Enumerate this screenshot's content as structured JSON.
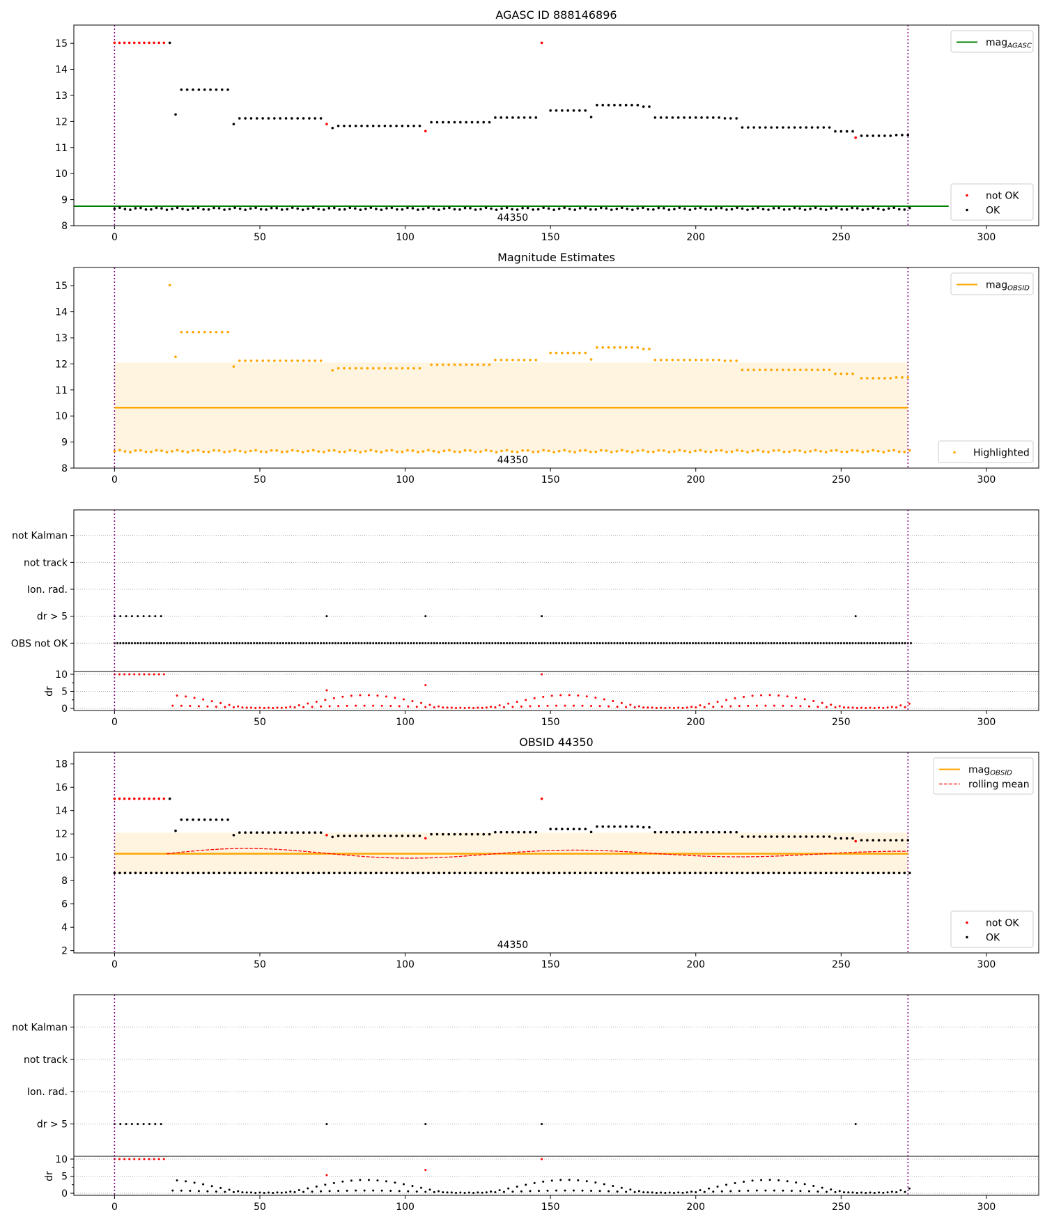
{
  "chart_data": [
    {
      "type": "scatter",
      "title": "AGASC ID 888146896",
      "xlim": [
        -14,
        318
      ],
      "ylim": [
        8,
        15.7
      ],
      "x_ticks": [
        0,
        50,
        100,
        150,
        200,
        250,
        300
      ],
      "y_ticks": [
        8,
        9,
        10,
        11,
        12,
        13,
        14,
        15
      ],
      "obsid_label": "44350",
      "obsid_x": 137,
      "obsid_boundaries": [
        0,
        273
      ],
      "mag_agasc": 8.75,
      "mag_agasc_xrange": [
        -14,
        287
      ],
      "legend_upper": {
        "placement": "upper-right",
        "entries": [
          {
            "kind": "line",
            "label_main": "mag",
            "label_sub": "AGASC",
            "color": "#008000"
          }
        ]
      },
      "legend_lower": {
        "placement": "lower-right",
        "entries": [
          {
            "kind": "dot",
            "label": "not OK",
            "color": "#ff0000"
          },
          {
            "kind": "dot",
            "label": "OK",
            "color": "#000000"
          }
        ]
      },
      "series": [
        {
          "name": "OK",
          "color": "#000000",
          "segments": [
            {
              "x": [
                0,
                274
              ],
              "y": 8.65,
              "step": 1.8,
              "jitter": 0.04
            },
            {
              "x": [
                19,
                19
              ],
              "y": 15.02,
              "step": 1
            },
            {
              "x": [
                21,
                21
              ],
              "y": 12.27,
              "step": 1
            },
            {
              "x": [
                23,
                39
              ],
              "y": 13.22,
              "step": 2
            },
            {
              "x": [
                41,
                41
              ],
              "y": 11.9,
              "step": 1
            },
            {
              "x": [
                43,
                71
              ],
              "y": 12.12,
              "step": 2
            },
            {
              "x": [
                75,
                75
              ],
              "y": 11.75,
              "step": 1
            },
            {
              "x": [
                77,
                105
              ],
              "y": 11.83,
              "step": 2
            },
            {
              "x": [
                109,
                129
              ],
              "y": 11.97,
              "step": 2
            },
            {
              "x": [
                131,
                145
              ],
              "y": 12.15,
              "step": 2
            },
            {
              "x": [
                150,
                162
              ],
              "y": 12.42,
              "step": 2
            },
            {
              "x": [
                164,
                164
              ],
              "y": 12.17,
              "step": 1
            },
            {
              "x": [
                166,
                180
              ],
              "y": 12.63,
              "step": 2
            },
            {
              "x": [
                182,
                184
              ],
              "y": 12.57,
              "step": 2
            },
            {
              "x": [
                186,
                208
              ],
              "y": 12.15,
              "step": 2
            },
            {
              "x": [
                210,
                214
              ],
              "y": 12.12,
              "step": 2
            },
            {
              "x": [
                216,
                246
              ],
              "y": 11.77,
              "step": 2
            },
            {
              "x": [
                248,
                254
              ],
              "y": 11.62,
              "step": 2
            },
            {
              "x": [
                257,
                267
              ],
              "y": 11.45,
              "step": 2
            },
            {
              "x": [
                269,
                273
              ],
              "y": 11.48,
              "step": 2
            }
          ]
        },
        {
          "name": "not OK",
          "color": "#ff0000",
          "segments": [
            {
              "x": [
                0,
                17
              ],
              "y": 15.02,
              "step": 1.7
            },
            {
              "x": [
                73,
                73
              ],
              "y": 11.9,
              "step": 1
            },
            {
              "x": [
                107,
                107
              ],
              "y": 11.63,
              "step": 1
            },
            {
              "x": [
                147,
                147
              ],
              "y": 15.02,
              "step": 1
            },
            {
              "x": [
                255,
                255
              ],
              "y": 11.38,
              "step": 1
            }
          ]
        }
      ]
    },
    {
      "type": "scatter",
      "title": "Magnitude Estimates",
      "xlim": [
        -14,
        318
      ],
      "ylim": [
        8,
        15.7
      ],
      "x_ticks": [
        0,
        50,
        100,
        150,
        200,
        250,
        300
      ],
      "y_ticks": [
        8,
        9,
        10,
        11,
        12,
        13,
        14,
        15
      ],
      "obsid_label": "44350",
      "obsid_x": 137,
      "obsid_boundaries": [
        0,
        273
      ],
      "mag_obsid": 10.32,
      "band": [
        8.62,
        12.05
      ],
      "legend_upper": {
        "placement": "upper-right",
        "entries": [
          {
            "kind": "line",
            "label_main": "mag",
            "label_sub": "OBSID",
            "color": "#ffa500"
          }
        ]
      },
      "legend_lower": {
        "placement": "lower-right",
        "entries": [
          {
            "kind": "dot",
            "label": "Highlighted",
            "color": "#ffa500"
          }
        ]
      },
      "series": [
        {
          "name": "Highlighted",
          "color": "#ffa500",
          "segments": [
            {
              "x": [
                0,
                274
              ],
              "y": 8.65,
              "step": 1.8,
              "jitter": 0.04
            },
            {
              "x": [
                19,
                19
              ],
              "y": 15.02,
              "step": 1
            },
            {
              "x": [
                21,
                21
              ],
              "y": 12.27,
              "step": 1
            },
            {
              "x": [
                23,
                39
              ],
              "y": 13.22,
              "step": 2
            },
            {
              "x": [
                41,
                41
              ],
              "y": 11.9,
              "step": 1
            },
            {
              "x": [
                43,
                71
              ],
              "y": 12.12,
              "step": 2
            },
            {
              "x": [
                75,
                75
              ],
              "y": 11.75,
              "step": 1
            },
            {
              "x": [
                77,
                105
              ],
              "y": 11.83,
              "step": 2
            },
            {
              "x": [
                109,
                129
              ],
              "y": 11.97,
              "step": 2
            },
            {
              "x": [
                131,
                145
              ],
              "y": 12.15,
              "step": 2
            },
            {
              "x": [
                150,
                162
              ],
              "y": 12.42,
              "step": 2
            },
            {
              "x": [
                164,
                164
              ],
              "y": 12.17,
              "step": 1
            },
            {
              "x": [
                166,
                180
              ],
              "y": 12.63,
              "step": 2
            },
            {
              "x": [
                182,
                184
              ],
              "y": 12.57,
              "step": 2
            },
            {
              "x": [
                186,
                208
              ],
              "y": 12.15,
              "step": 2
            },
            {
              "x": [
                210,
                214
              ],
              "y": 12.12,
              "step": 2
            },
            {
              "x": [
                216,
                246
              ],
              "y": 11.77,
              "step": 2
            },
            {
              "x": [
                248,
                254
              ],
              "y": 11.62,
              "step": 2
            },
            {
              "x": [
                257,
                267
              ],
              "y": 11.45,
              "step": 2
            },
            {
              "x": [
                269,
                273
              ],
              "y": 11.48,
              "step": 2
            }
          ]
        }
      ]
    },
    {
      "type": "scatter",
      "title": "",
      "xlim": [
        -14,
        318
      ],
      "x_ticks": [
        0,
        50,
        100,
        150,
        200,
        250,
        300
      ],
      "obsid_boundaries": [
        0,
        273
      ],
      "flag_rows": [
        "not Kalman",
        "not track",
        "Ion. rad.",
        "dr > 5",
        "OBS not OK"
      ],
      "flags": {
        "dr > 5": [
          0,
          2,
          4,
          6,
          8,
          10,
          12,
          14,
          16,
          73,
          107,
          147,
          255
        ],
        "OBS not OK": {
          "x": [
            0,
            274
          ],
          "step": 1
        }
      },
      "dr": {
        "ylabel": "dr",
        "ylim": [
          0,
          10
        ],
        "y_ticks": [
          0,
          5,
          10
        ],
        "values": [
          {
            "x": [
              0,
              17
            ],
            "y": 10,
            "step": 1.7,
            "color": "#ff0000"
          },
          {
            "x": [
              73,
              73
            ],
            "y": 5.3,
            "step": 1,
            "color": "#ff0000"
          },
          {
            "x": [
              107,
              107
            ],
            "y": 6.8,
            "step": 1,
            "color": "#ff0000"
          },
          {
            "x": [
              147,
              147
            ],
            "y": 10,
            "step": 1,
            "color": "#ff0000"
          },
          {
            "x": [
              20,
              274
            ],
            "y": 1.3,
            "step": 1.5,
            "color": "#ff0000",
            "wave": 2.0
          }
        ]
      }
    },
    {
      "type": "scatter",
      "title": "OBSID 44350",
      "xlim": [
        -14,
        318
      ],
      "ylim": [
        1.8,
        19
      ],
      "x_ticks": [
        0,
        50,
        100,
        150,
        200,
        250,
        300
      ],
      "y_ticks": [
        2,
        4,
        6,
        8,
        10,
        12,
        14,
        16,
        18
      ],
      "obsid_label": "44350",
      "obsid_x": 137,
      "obsid_boundaries": [
        0,
        273
      ],
      "mag_obsid": 10.3,
      "band": [
        8.6,
        12.1
      ],
      "legend_upper": {
        "placement": "upper-right",
        "entries": [
          {
            "kind": "line",
            "label_main": "mag",
            "label_sub": "OBSID",
            "color": "#ffa500"
          },
          {
            "kind": "dash",
            "label": "rolling mean",
            "color": "#ff0000"
          }
        ]
      },
      "legend_lower": {
        "placement": "lower-right",
        "entries": [
          {
            "kind": "dot",
            "label": "not OK",
            "color": "#ff0000"
          },
          {
            "kind": "dot",
            "label": "OK",
            "color": "#000000"
          }
        ]
      },
      "rolling_mean": {
        "x": [
          18,
          273
        ],
        "y": 10.3,
        "amp": 0.5,
        "color": "#ff0000"
      },
      "series": [
        {
          "name": "OK",
          "color": "#000000",
          "segments": [
            {
              "x": [
                0,
                274
              ],
              "y": 8.65,
              "step": 1.8
            },
            {
              "x": [
                19,
                19
              ],
              "y": 15.02,
              "step": 1
            },
            {
              "x": [
                21,
                21
              ],
              "y": 12.27,
              "step": 1
            },
            {
              "x": [
                23,
                39
              ],
              "y": 13.22,
              "step": 2
            },
            {
              "x": [
                41,
                41
              ],
              "y": 11.9,
              "step": 1
            },
            {
              "x": [
                43,
                71
              ],
              "y": 12.12,
              "step": 2
            },
            {
              "x": [
                75,
                75
              ],
              "y": 11.75,
              "step": 1
            },
            {
              "x": [
                77,
                105
              ],
              "y": 11.83,
              "step": 2
            },
            {
              "x": [
                109,
                129
              ],
              "y": 11.97,
              "step": 2
            },
            {
              "x": [
                131,
                145
              ],
              "y": 12.15,
              "step": 2
            },
            {
              "x": [
                150,
                162
              ],
              "y": 12.42,
              "step": 2
            },
            {
              "x": [
                164,
                164
              ],
              "y": 12.17,
              "step": 1
            },
            {
              "x": [
                166,
                180
              ],
              "y": 12.63,
              "step": 2
            },
            {
              "x": [
                182,
                184
              ],
              "y": 12.57,
              "step": 2
            },
            {
              "x": [
                186,
                214
              ],
              "y": 12.15,
              "step": 2
            },
            {
              "x": [
                216,
                246
              ],
              "y": 11.77,
              "step": 2
            },
            {
              "x": [
                248,
                254
              ],
              "y": 11.62,
              "step": 2
            },
            {
              "x": [
                257,
                273
              ],
              "y": 11.46,
              "step": 2
            }
          ]
        },
        {
          "name": "not OK",
          "color": "#ff0000",
          "segments": [
            {
              "x": [
                0,
                17
              ],
              "y": 15.02,
              "step": 1.7
            },
            {
              "x": [
                73,
                73
              ],
              "y": 11.9,
              "step": 1
            },
            {
              "x": [
                107,
                107
              ],
              "y": 11.63,
              "step": 1
            },
            {
              "x": [
                147,
                147
              ],
              "y": 15.02,
              "step": 1
            },
            {
              "x": [
                255,
                255
              ],
              "y": 11.38,
              "step": 1
            }
          ]
        }
      ]
    },
    {
      "type": "scatter",
      "title": "",
      "xlim": [
        -14,
        318
      ],
      "x_ticks": [
        0,
        50,
        100,
        150,
        200,
        250,
        300
      ],
      "obsid_boundaries": [
        0,
        273
      ],
      "flag_rows": [
        "not Kalman",
        "not track",
        "Ion. rad.",
        "dr > 5"
      ],
      "flags": {
        "dr > 5": [
          0,
          2,
          4,
          6,
          8,
          10,
          12,
          14,
          16,
          73,
          107,
          147,
          255
        ]
      },
      "dr": {
        "ylabel": "dr",
        "ylim": [
          0,
          10
        ],
        "y_ticks": [
          0,
          5,
          10
        ],
        "values": [
          {
            "x": [
              0,
              17
            ],
            "y": 10,
            "step": 1.7,
            "color": "#ff0000"
          },
          {
            "x": [
              73,
              73
            ],
            "y": 5.3,
            "step": 1,
            "color": "#ff0000"
          },
          {
            "x": [
              107,
              107
            ],
            "y": 6.8,
            "step": 1,
            "color": "#ff0000"
          },
          {
            "x": [
              147,
              147
            ],
            "y": 10,
            "step": 1,
            "color": "#ff0000"
          },
          {
            "x": [
              20,
              274
            ],
            "y": 1.3,
            "step": 1.5,
            "color": "#000000",
            "wave": 2.0
          }
        ]
      }
    }
  ]
}
